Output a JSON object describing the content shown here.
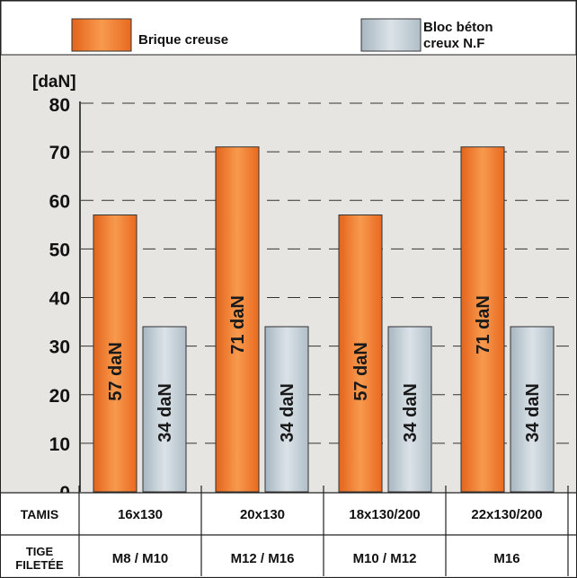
{
  "chart_data": {
    "type": "bar",
    "unit_label": "[daN]",
    "ylim": [
      0,
      80
    ],
    "yticks": [
      0,
      10,
      20,
      30,
      40,
      50,
      60,
      70,
      80
    ],
    "grid": "dashed horizontal",
    "legend_position": "top",
    "series": [
      {
        "name": "Brique creuse",
        "values": [
          57,
          71,
          57,
          71
        ],
        "labels": [
          "57 daN",
          "71 daN",
          "57 daN",
          "71 daN"
        ]
      },
      {
        "name": "Bloc béton creux N.F",
        "values": [
          34,
          34,
          34,
          34
        ],
        "labels": [
          "34 daN",
          "34 daN",
          "34 daN",
          "34 daN"
        ]
      }
    ],
    "table": {
      "rows": [
        {
          "header": "TAMIS",
          "cells": [
            "16x130",
            "20x130",
            "18x130/200",
            "22x130/200"
          ]
        },
        {
          "header": [
            "TIGE",
            "FILETÉE"
          ],
          "cells": [
            "M8 / M10",
            "M12 / M16",
            "M10 / M12",
            "M16"
          ]
        }
      ]
    }
  },
  "colors": {
    "brique": "#f07a2a",
    "bloc": "#b8c6cf",
    "background": "#e7e5e2",
    "gridline": "#333333",
    "text": "#111111"
  }
}
